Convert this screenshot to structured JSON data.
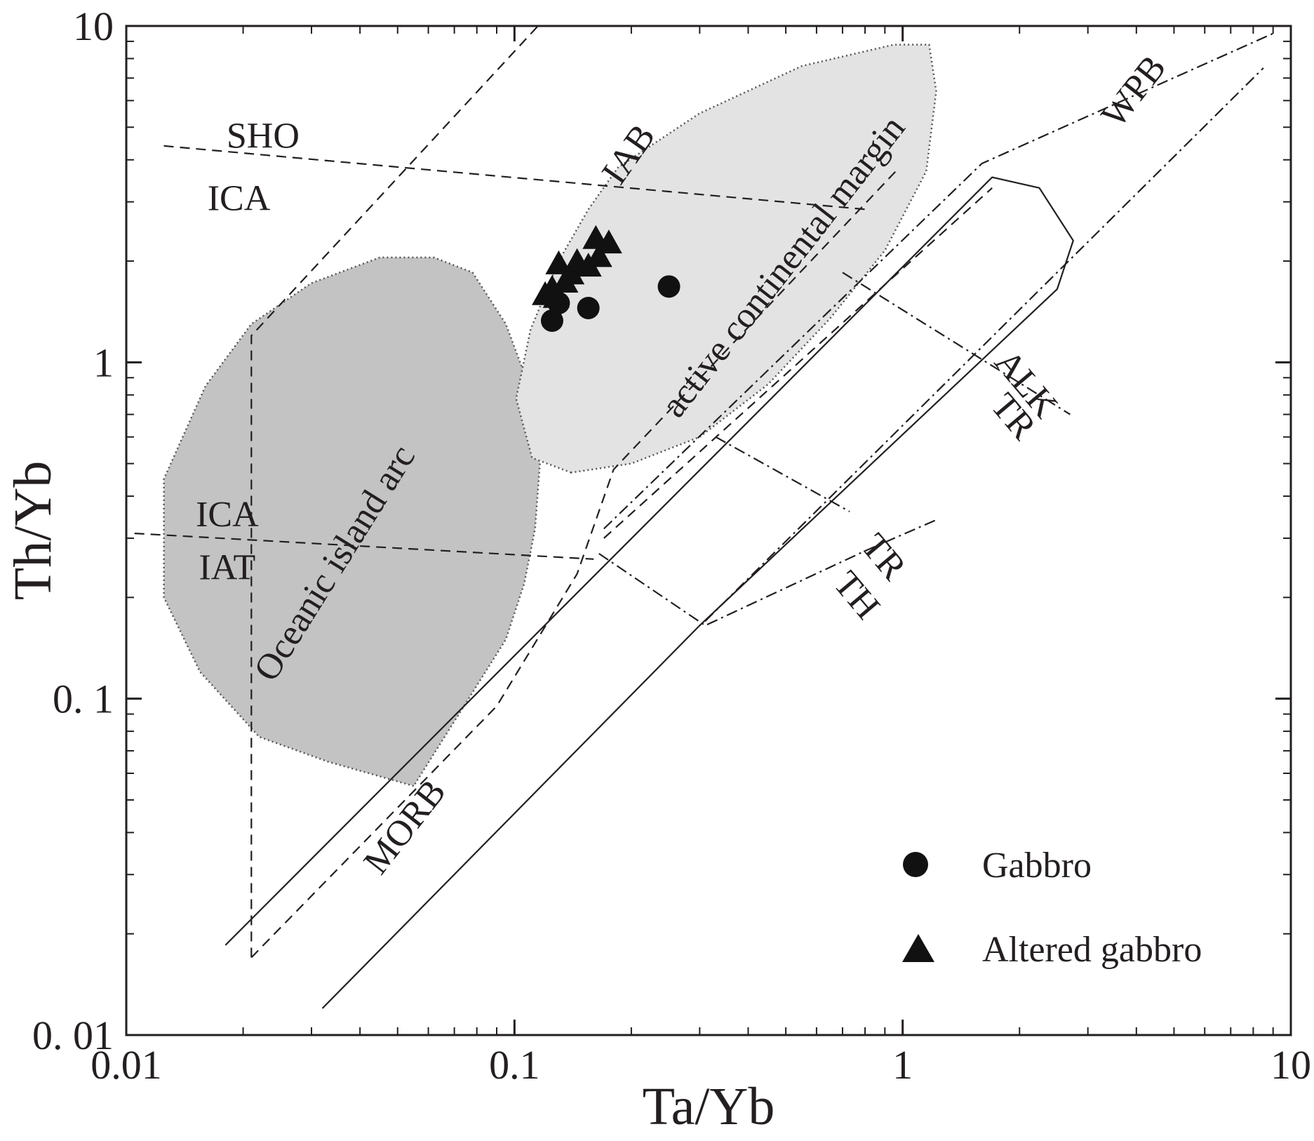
{
  "chart_data": {
    "type": "scatter",
    "xscale": "log",
    "yscale": "log",
    "xlim": [
      0.01,
      10
    ],
    "ylim": [
      0.01,
      10
    ],
    "xlabel": "Ta/Yb",
    "ylabel": "Th/Yb",
    "xtick_labels": [
      "0.01",
      "0.1",
      "1",
      "10"
    ],
    "ytick_labels": [
      "0. 01",
      "0. 1",
      "1",
      "10"
    ],
    "legend_position": "bottom-right",
    "colors": {
      "points": "#111111",
      "oceanic_arc_fill": "#c3c3c3",
      "continental_margin_fill": "#e3e3e3",
      "lines": "#231f20"
    },
    "series": [
      {
        "name": "Gabbro",
        "marker": "circle",
        "points": [
          {
            "x": 0.125,
            "y": 1.33
          },
          {
            "x": 0.13,
            "y": 1.5
          },
          {
            "x": 0.155,
            "y": 1.45
          },
          {
            "x": 0.25,
            "y": 1.68
          }
        ]
      },
      {
        "name": "Altered gabbro",
        "marker": "triangle",
        "points": [
          {
            "x": 0.12,
            "y": 1.58
          },
          {
            "x": 0.125,
            "y": 1.65
          },
          {
            "x": 0.128,
            "y": 1.55
          },
          {
            "x": 0.135,
            "y": 1.72
          },
          {
            "x": 0.13,
            "y": 1.95
          },
          {
            "x": 0.14,
            "y": 1.82
          },
          {
            "x": 0.145,
            "y": 1.98
          },
          {
            "x": 0.155,
            "y": 1.92
          },
          {
            "x": 0.165,
            "y": 2.05
          },
          {
            "x": 0.162,
            "y": 2.32
          },
          {
            "x": 0.175,
            "y": 2.25
          }
        ]
      }
    ],
    "field_labels": [
      {
        "text": "SHO",
        "x": 0.0225,
        "y": 4.6,
        "rotate": 0
      },
      {
        "text": "ICA",
        "x": 0.0195,
        "y": 3.0,
        "rotate": 0
      },
      {
        "text": "ICA",
        "x": 0.0182,
        "y": 0.345,
        "rotate": 0
      },
      {
        "text": "IAT",
        "x": 0.0182,
        "y": 0.24,
        "rotate": 0
      },
      {
        "text": "IAB",
        "x": 0.2,
        "y": 4.1,
        "rotate": -55
      },
      {
        "text": "active continental margin",
        "x": 0.5,
        "y": 1.9,
        "rotate": -52
      },
      {
        "text": "Oceanic island arc",
        "x": 0.035,
        "y": 0.25,
        "rotate": -58
      },
      {
        "text": "WPB",
        "x": 4.0,
        "y": 6.3,
        "rotate": -52
      },
      {
        "text": "ALK",
        "x": 2.05,
        "y": 0.85,
        "rotate": 50
      },
      {
        "text": "TR",
        "x": 1.9,
        "y": 0.68,
        "rotate": 50
      },
      {
        "text": "TR",
        "x": 0.88,
        "y": 0.26,
        "rotate": 50
      },
      {
        "text": "TH",
        "x": 0.75,
        "y": 0.2,
        "rotate": 50
      },
      {
        "text": "MORB",
        "x": 0.053,
        "y": 0.041,
        "rotate": -52
      }
    ],
    "regions": [
      {
        "name": "Oceanic island arc",
        "points": [
          [
            0.055,
            0.055
          ],
          [
            0.033,
            0.065
          ],
          [
            0.022,
            0.077
          ],
          [
            0.0155,
            0.12
          ],
          [
            0.0125,
            0.2
          ],
          [
            0.0125,
            0.45
          ],
          [
            0.016,
            0.85
          ],
          [
            0.021,
            1.3
          ],
          [
            0.03,
            1.72
          ],
          [
            0.045,
            2.05
          ],
          [
            0.062,
            2.05
          ],
          [
            0.078,
            1.85
          ],
          [
            0.095,
            1.3
          ],
          [
            0.107,
            0.9
          ],
          [
            0.117,
            0.55
          ],
          [
            0.113,
            0.32
          ],
          [
            0.106,
            0.22
          ],
          [
            0.095,
            0.15
          ]
        ]
      },
      {
        "name": "active continental margin",
        "points": [
          [
            0.14,
            0.47
          ],
          [
            0.111,
            0.52
          ],
          [
            0.101,
            0.78
          ],
          [
            0.11,
            1.25
          ],
          [
            0.13,
            2.0
          ],
          [
            0.155,
            2.85
          ],
          [
            0.185,
            3.8
          ],
          [
            0.3,
            5.5
          ],
          [
            0.55,
            7.6
          ],
          [
            0.95,
            8.8
          ],
          [
            1.17,
            8.8
          ],
          [
            1.22,
            6.4
          ],
          [
            1.15,
            3.7
          ],
          [
            0.9,
            2.15
          ],
          [
            0.65,
            1.35
          ],
          [
            0.45,
            0.86
          ],
          [
            0.3,
            0.6
          ],
          [
            0.2,
            0.5
          ]
        ]
      }
    ],
    "boundaries": [
      {
        "style": "dashed",
        "points": [
          [
            0.0125,
            4.4
          ],
          [
            0.8,
            2.85
          ]
        ]
      },
      {
        "style": "dashed",
        "points": [
          [
            0.0105,
            0.31
          ],
          [
            0.16,
            0.26
          ]
        ]
      },
      {
        "style": "dashed",
        "points": [
          [
            0.021,
            0.017
          ],
          [
            0.021,
            1.2
          ],
          [
            0.115,
            10
          ]
        ]
      },
      {
        "style": "dashed",
        "points": [
          [
            0.021,
            0.017
          ],
          [
            0.09,
            0.095
          ],
          [
            0.145,
            0.235
          ],
          [
            0.18,
            0.48
          ],
          [
            0.96,
            3.7
          ]
        ]
      },
      {
        "style": "dashed",
        "points": [
          [
            0.17,
            0.3
          ],
          [
            1.7,
            3.3
          ]
        ]
      },
      {
        "style": "solid",
        "points": [
          [
            0.018,
            0.0185
          ],
          [
            1.7,
            3.55
          ],
          [
            2.25,
            3.3
          ],
          [
            2.75,
            2.3
          ],
          [
            2.5,
            1.65
          ],
          [
            0.3,
            0.165
          ],
          [
            0.032,
            0.012
          ]
        ]
      },
      {
        "style": "dashdot",
        "points": [
          [
            0.17,
            0.32
          ],
          [
            1.6,
            3.9
          ],
          [
            9.0,
            9.5
          ]
        ]
      },
      {
        "style": "dashdot",
        "points": [
          [
            0.31,
            0.17
          ],
          [
            8.5,
            7.5
          ]
        ]
      },
      {
        "style": "dashdot",
        "points": [
          [
            0.165,
            0.27
          ],
          [
            0.31,
            0.165
          ],
          [
            0.8,
            0.275
          ],
          [
            1.22,
            0.34
          ]
        ]
      },
      {
        "style": "dashdot",
        "points": [
          [
            0.33,
            0.6
          ],
          [
            0.73,
            0.36
          ]
        ]
      },
      {
        "style": "dashdot",
        "points": [
          [
            0.7,
            1.85
          ],
          [
            2.7,
            0.7
          ]
        ]
      }
    ]
  }
}
